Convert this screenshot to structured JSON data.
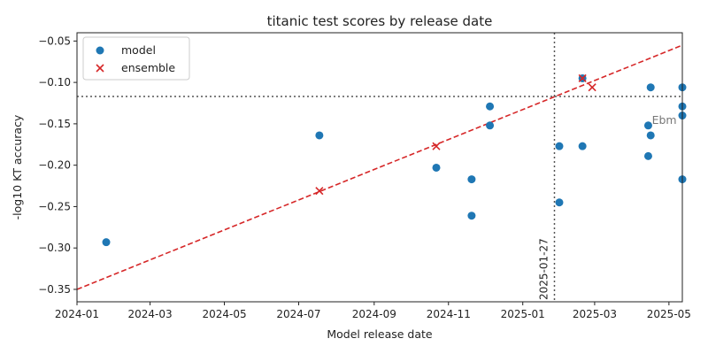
{
  "chart_data": {
    "type": "scatter",
    "title": "titanic test scores by release date",
    "xlabel": "Model release date",
    "ylabel": "-log10 KT accuracy",
    "xlim": [
      "2024-01-01",
      "2025-05-12"
    ],
    "ylim": [
      -0.365,
      -0.04
    ],
    "x_ticks": [
      "2024-01",
      "2024-03",
      "2024-05",
      "2024-07",
      "2024-09",
      "2024-11",
      "2025-01",
      "2025-03",
      "2025-05"
    ],
    "y_ticks": [
      -0.35,
      -0.3,
      -0.25,
      -0.2,
      -0.15,
      -0.1,
      -0.05
    ],
    "y_tick_labels": [
      "−0.35",
      "−0.30",
      "−0.25",
      "−0.20",
      "−0.15",
      "−0.10",
      "−0.05"
    ],
    "legend_position": "top-left",
    "series": [
      {
        "name": "model",
        "marker": "circle",
        "color": "#1f77b4",
        "points": [
          {
            "x": "2024-01-25",
            "y": -0.293
          },
          {
            "x": "2024-07-18",
            "y": -0.164
          },
          {
            "x": "2024-10-22",
            "y": -0.203
          },
          {
            "x": "2024-11-20",
            "y": -0.217
          },
          {
            "x": "2024-11-20",
            "y": -0.261
          },
          {
            "x": "2024-12-05",
            "y": -0.129
          },
          {
            "x": "2024-12-05",
            "y": -0.152
          },
          {
            "x": "2025-01-31",
            "y": -0.177
          },
          {
            "x": "2025-01-31",
            "y": -0.245
          },
          {
            "x": "2025-02-19",
            "y": -0.095
          },
          {
            "x": "2025-02-19",
            "y": -0.177
          },
          {
            "x": "2025-04-14",
            "y": -0.152
          },
          {
            "x": "2025-04-14",
            "y": -0.189
          },
          {
            "x": "2025-04-16",
            "y": -0.106
          },
          {
            "x": "2025-04-16",
            "y": -0.164
          },
          {
            "x": "2025-05-12",
            "y": -0.106
          },
          {
            "x": "2025-05-12",
            "y": -0.129
          },
          {
            "x": "2025-05-12",
            "y": -0.14
          },
          {
            "x": "2025-05-12",
            "y": -0.217
          }
        ]
      },
      {
        "name": "ensemble",
        "marker": "x",
        "color": "#d62728",
        "points": [
          {
            "x": "2024-07-18",
            "y": -0.231
          },
          {
            "x": "2024-10-22",
            "y": -0.177
          },
          {
            "x": "2025-02-19",
            "y": -0.095
          },
          {
            "x": "2025-02-27",
            "y": -0.106
          }
        ]
      }
    ],
    "trend_line": {
      "style": "dashed",
      "color": "#d62728",
      "from": {
        "x": "2024-01-01",
        "y": -0.35
      },
      "to": {
        "x": "2025-05-12",
        "y": -0.055
      }
    },
    "vertical_line": {
      "x": "2025-01-27",
      "label": "2025-01-27",
      "color": "#555555"
    },
    "horizontal_line": {
      "y": -0.117,
      "color": "#555555"
    },
    "annotations": [
      {
        "text": "Ebm",
        "x": "2025-04-17",
        "y": -0.146
      }
    ]
  }
}
